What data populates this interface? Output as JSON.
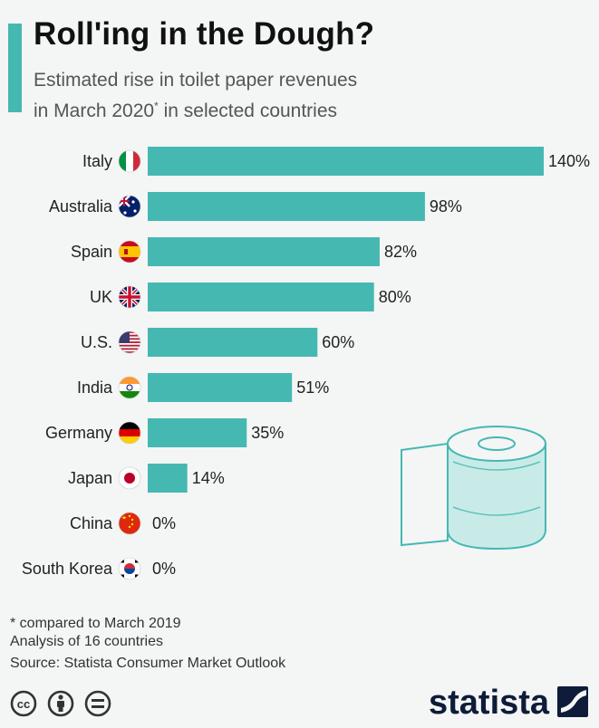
{
  "header": {
    "title": "Roll'ing in the Dough?",
    "subtitle_line1": "Estimated rise in toilet paper revenues",
    "subtitle_line2_pre": "in March 2020",
    "subtitle_sup": "*",
    "subtitle_line2_post": " in selected countries"
  },
  "chart_data": {
    "type": "bar",
    "orientation": "horizontal",
    "categories": [
      "Italy",
      "Australia",
      "Spain",
      "UK",
      "U.S.",
      "India",
      "Germany",
      "Japan",
      "China",
      "South Korea"
    ],
    "values": [
      140,
      98,
      82,
      80,
      60,
      51,
      35,
      14,
      0,
      0
    ],
    "value_labels": [
      "140%",
      "98%",
      "82%",
      "80%",
      "60%",
      "51%",
      "35%",
      "14%",
      "0%",
      "0%"
    ],
    "flags": [
      "italy-flag-icon",
      "australia-flag-icon",
      "spain-flag-icon",
      "uk-flag-icon",
      "us-flag-icon",
      "india-flag-icon",
      "germany-flag-icon",
      "japan-flag-icon",
      "china-flag-icon",
      "south-korea-flag-icon"
    ],
    "xlim": [
      0,
      140
    ],
    "grid": false,
    "colors": {
      "bar": "#45b8b2",
      "accent": "#45b8b2"
    }
  },
  "footnotes": {
    "line1": "* compared to March 2019",
    "line2": "Analysis of 16 countries",
    "source": "Source: Statista Consumer Market Outlook"
  },
  "brand": {
    "name": "statista"
  },
  "license_icons": [
    "creative-commons-icon",
    "attribution-icon",
    "no-derivatives-icon"
  ],
  "illustration": "toilet-paper-roll-icon"
}
